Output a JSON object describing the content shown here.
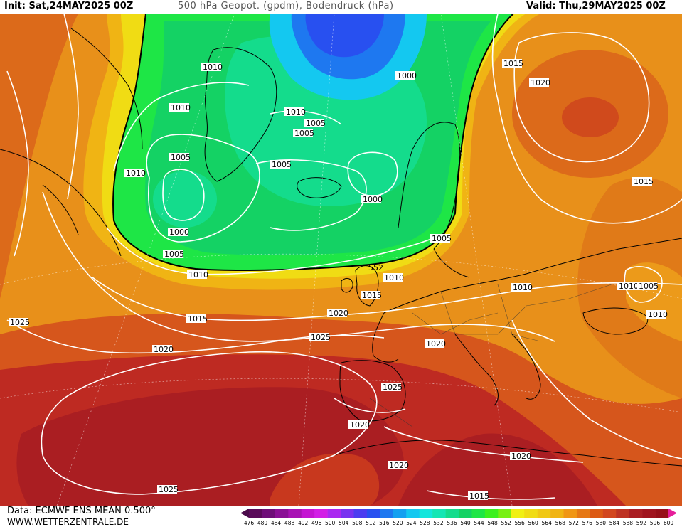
{
  "header": {
    "init": "Init: Sat,24MAY2025 00Z",
    "title": "500 hPa Geopot. (gpdm), Bodendruck (hPa)",
    "valid": "Valid: Thu,29MAY2025 00Z"
  },
  "footer": {
    "data_source": "Data: ECMWF ENS MEAN 0.500°",
    "site": "WWW.WETTERZENTRALE.DE"
  },
  "colorbar": {
    "ticks": [
      "476",
      "480",
      "484",
      "488",
      "492",
      "496",
      "500",
      "504",
      "508",
      "512",
      "516",
      "520",
      "524",
      "528",
      "532",
      "536",
      "540",
      "544",
      "548",
      "552",
      "556",
      "560",
      "564",
      "568",
      "572",
      "576",
      "580",
      "584",
      "588",
      "592",
      "596",
      "600"
    ],
    "colors": [
      "#5a0a5a",
      "#6e0d78",
      "#8a0f96",
      "#a812b4",
      "#c414d2",
      "#d21ee6",
      "#aa28f0",
      "#7832f0",
      "#4b3cf0",
      "#2850f0",
      "#1e78f0",
      "#14a0f0",
      "#14c8f0",
      "#14e6dc",
      "#14e6b4",
      "#14dc8c",
      "#14d264",
      "#1ee646",
      "#3cf01e",
      "#78f014",
      "#f0f014",
      "#f0dc14",
      "#f0c814",
      "#f0b414",
      "#f09614",
      "#e67814",
      "#dc5a14",
      "#d2461e",
      "#be3223",
      "#aa1e23",
      "#a0141e",
      "#960f19"
    ]
  },
  "map": {
    "isobar_labels": [
      "1010",
      "1010",
      "1010",
      "1010",
      "1005",
      "1005",
      "1005",
      "1005",
      "1000",
      "1000",
      "1000",
      "1005",
      "1010",
      "1015",
      "1020",
      "1025",
      "1020",
      "1025",
      "1015",
      "1020",
      "1025",
      "1020",
      "1020",
      "1015",
      "1025",
      "1010",
      "1010",
      "1015",
      "1020",
      "1015",
      "1010",
      "1005",
      "1010",
      "1015",
      "1020",
      "552"
    ]
  }
}
